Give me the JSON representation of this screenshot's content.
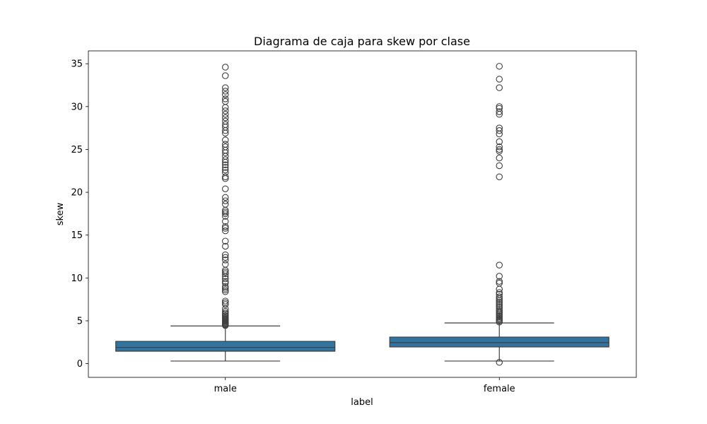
{
  "chart_data": {
    "type": "box",
    "title": "Diagrama de caja para skew por clase",
    "xlabel": "label",
    "ylabel": "skew",
    "ylim": [
      -1.6,
      36.5
    ],
    "yticks": [
      0,
      5,
      10,
      15,
      20,
      25,
      30,
      35
    ],
    "grid": false,
    "legend": "none",
    "colors": {
      "box_fill": "#3274a1",
      "line": "#3f3f3f",
      "frame": "#000000"
    },
    "categories": [
      "male",
      "female"
    ],
    "series": [
      {
        "category": "male",
        "whisker_low": 0.3,
        "q1": 1.45,
        "median": 1.9,
        "q3": 2.6,
        "whisker_high": 4.4,
        "outliers": [
          4.45,
          4.55,
          4.65,
          4.75,
          4.85,
          4.95,
          5.05,
          5.15,
          5.25,
          5.35,
          5.5,
          5.6,
          5.75,
          5.9,
          6.1,
          6.4,
          6.9,
          7.1,
          7.3,
          8.4,
          8.6,
          8.8,
          9.0,
          9.4,
          9.6,
          9.9,
          10.2,
          10.5,
          10.7,
          10.9,
          11.6,
          12.1,
          12.4,
          12.7,
          13.7,
          14.3,
          15.5,
          15.8,
          16.0,
          16.6,
          17.2,
          17.5,
          17.7,
          17.9,
          18.6,
          19.0,
          19.4,
          20.4,
          21.6,
          21.8,
          22.3,
          22.6,
          22.9,
          23.2,
          23.5,
          23.8,
          24.2,
          24.6,
          24.9,
          25.3,
          25.6,
          26.1,
          26.9,
          27.2,
          27.6,
          27.9,
          28.3,
          28.7,
          29.1,
          29.5,
          29.9,
          30.6,
          30.9,
          31.4,
          31.8,
          32.2,
          33.6,
          34.6
        ]
      },
      {
        "category": "female",
        "whisker_low": 0.3,
        "q1": 1.95,
        "median": 2.45,
        "q3": 3.1,
        "whisker_high": 4.75,
        "outliers": [
          0.15,
          4.85,
          5.0,
          5.15,
          5.3,
          5.45,
          5.6,
          5.75,
          5.9,
          6.05,
          6.2,
          6.4,
          6.6,
          6.8,
          7.0,
          7.2,
          7.4,
          7.6,
          7.8,
          8.1,
          8.3,
          8.7,
          9.4,
          9.6,
          10.2,
          11.5,
          21.8,
          23.1,
          24.0,
          24.8,
          25.0,
          25.3,
          25.9,
          26.8,
          27.2,
          27.5,
          29.1,
          29.4,
          29.8,
          30.0,
          32.2,
          33.2,
          34.7
        ]
      }
    ]
  }
}
